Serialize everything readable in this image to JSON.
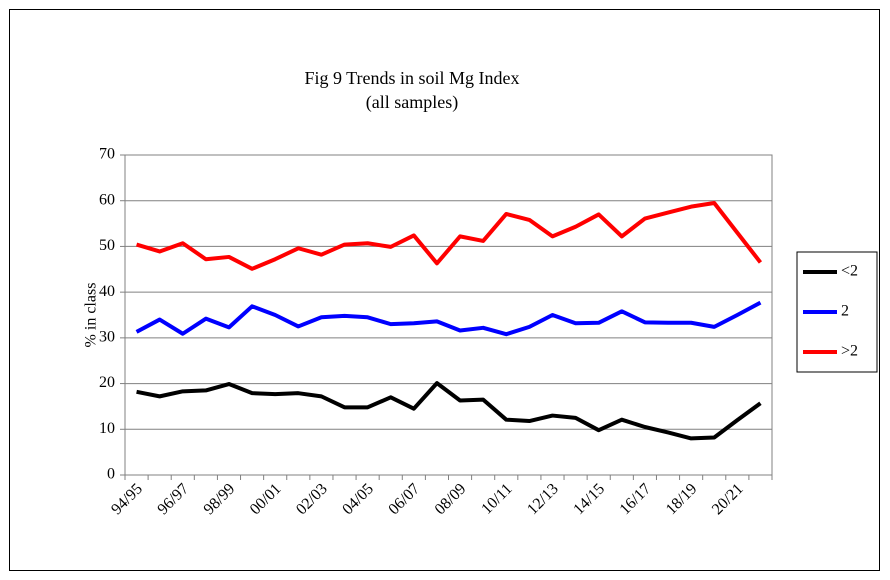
{
  "chart_data": {
    "type": "line",
    "title": "Fig 9 Trends in soil Mg Index",
    "subtitle": "(all samples)",
    "y_label": "% in class",
    "categories": [
      "94/95",
      null,
      "96/97",
      null,
      "98/99",
      null,
      "00/01",
      null,
      "02/03",
      null,
      "04/05",
      null,
      "06/07",
      null,
      "08/09",
      null,
      "10/11",
      null,
      "12/13",
      null,
      "14/15",
      null,
      "16/17",
      null,
      "18/19",
      null,
      "20/21",
      null
    ],
    "series": [
      {
        "name": "<2",
        "color": "#000000",
        "values": [
          18.2,
          17.2,
          18.3,
          18.5,
          19.9,
          17.9,
          17.7,
          17.9,
          17.2,
          14.8,
          14.8,
          17.0,
          14.5,
          20.1,
          16.3,
          16.5,
          12.1,
          11.8,
          13.0,
          12.5,
          9.8,
          12.1,
          10.5,
          9.3,
          8.0,
          8.2,
          12.0,
          15.7
        ]
      },
      {
        "name": "2",
        "color": "#0000ff",
        "values": [
          31.3,
          34.0,
          30.9,
          34.2,
          32.3,
          36.9,
          35.0,
          32.5,
          34.5,
          34.8,
          34.5,
          33.0,
          33.2,
          33.6,
          31.6,
          32.2,
          30.8,
          32.4,
          35.0,
          33.2,
          33.3,
          35.8,
          33.4,
          33.3,
          33.3,
          32.4,
          35.0,
          37.7
        ]
      },
      {
        "name": ">2",
        "color": "#ff0000",
        "values": [
          50.4,
          48.9,
          50.7,
          47.2,
          47.7,
          45.1,
          47.2,
          49.6,
          48.2,
          50.4,
          50.7,
          49.9,
          52.4,
          46.3,
          52.2,
          51.2,
          57.1,
          55.8,
          52.2,
          54.3,
          57.0,
          52.2,
          56.1,
          57.4,
          58.7,
          59.5,
          53.0,
          46.5
        ]
      }
    ],
    "ylim": [
      0,
      70
    ],
    "yticks": [
      0,
      10,
      20,
      30,
      40,
      50,
      60,
      70
    ],
    "grid": true,
    "legend": "right"
  }
}
